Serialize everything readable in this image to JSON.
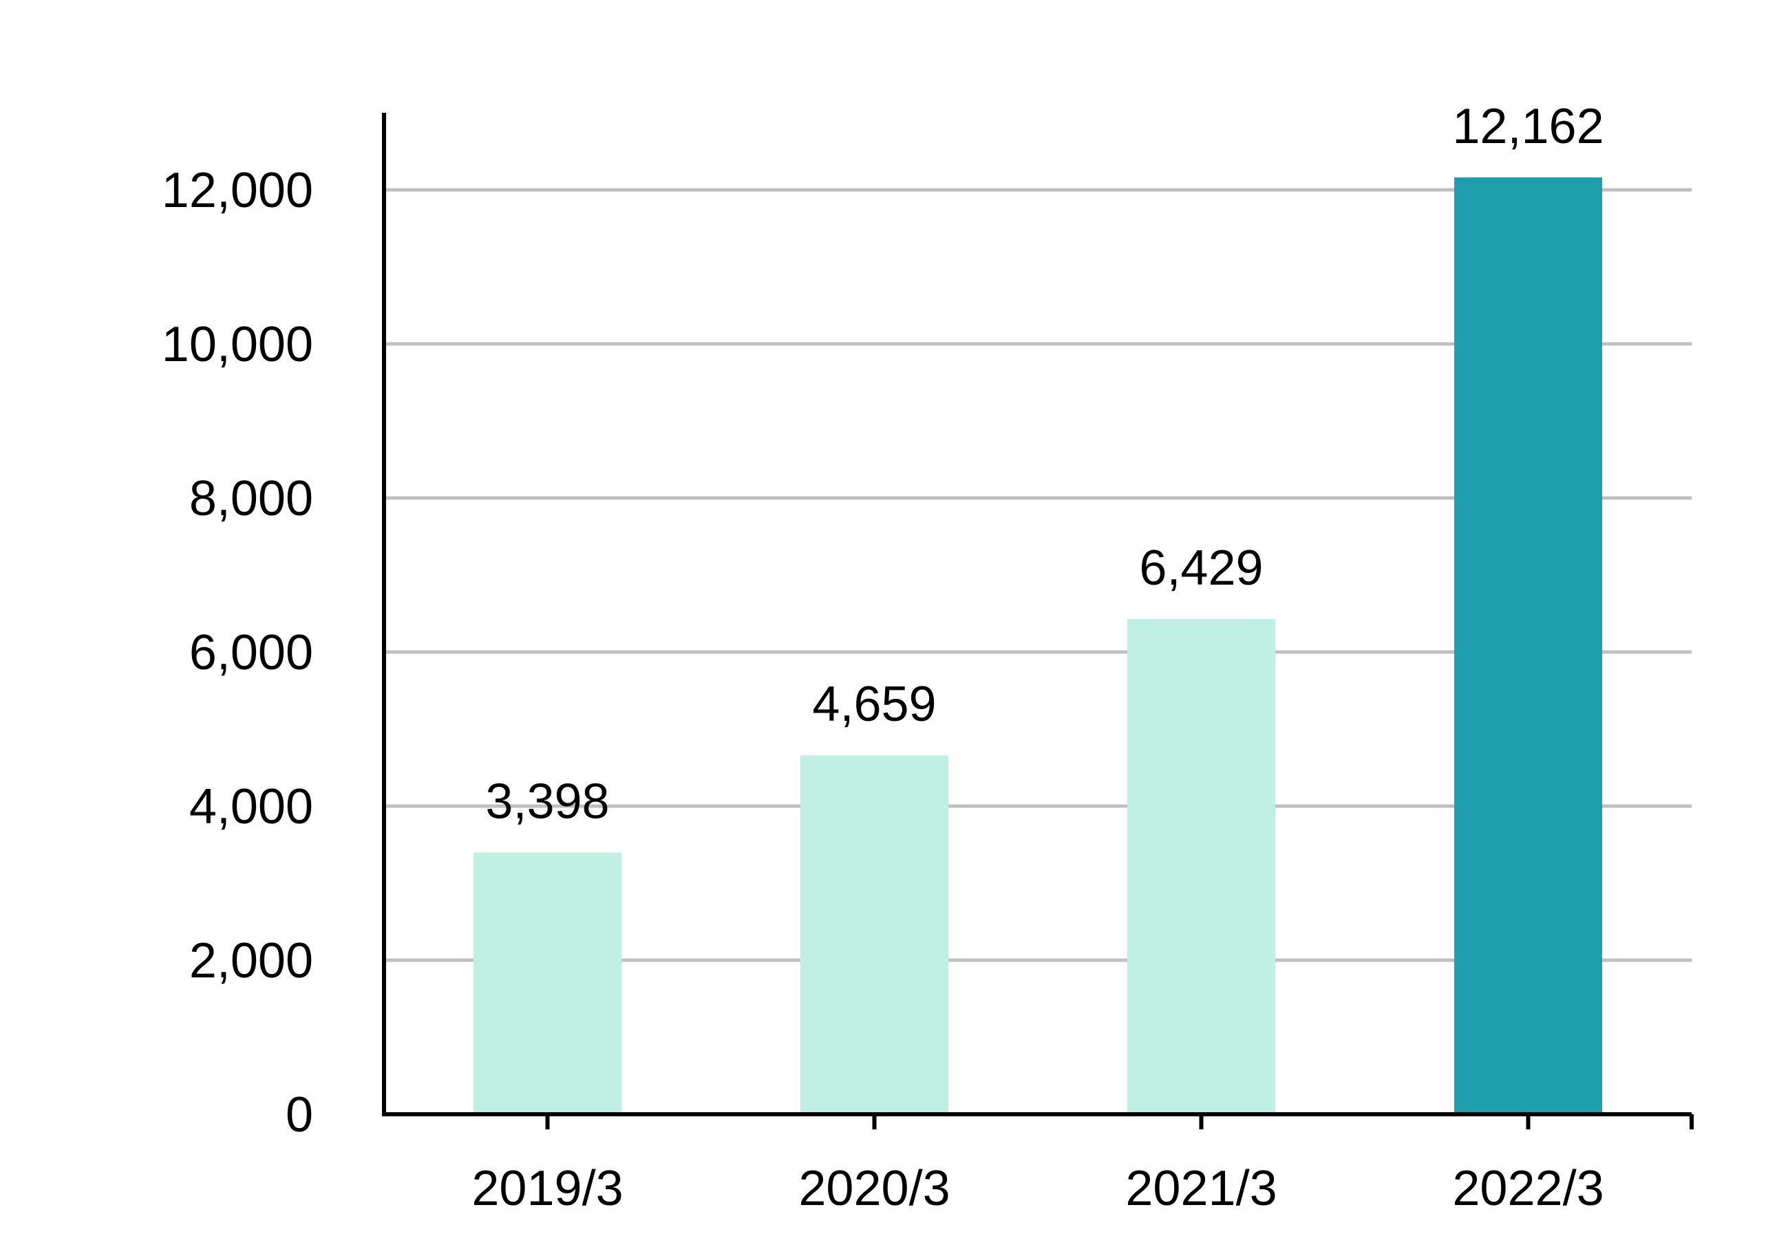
{
  "chart_data": {
    "type": "bar",
    "categories": [
      "2019/3",
      "2020/3",
      "2021/3",
      "2022/3"
    ],
    "values": [
      3398,
      4659,
      6429,
      12162
    ],
    "data_labels": [
      "3,398",
      "4,659",
      "6,429",
      "12,162"
    ],
    "ylim": [
      0,
      13000
    ],
    "yticks": [
      0,
      2000,
      4000,
      6000,
      8000,
      10000,
      12000
    ],
    "ytick_labels": [
      "0",
      "2,000",
      "4,000",
      "6,000",
      "8,000",
      "10,000",
      "12,000"
    ],
    "grid": true,
    "legend": "none",
    "colors": {
      "bar": "#c0f0e4",
      "highlight_bar": "#1f9fad",
      "grid": "#c0c0c0",
      "axis": "#000000",
      "text": "#000000"
    },
    "highlight_index": 3
  }
}
